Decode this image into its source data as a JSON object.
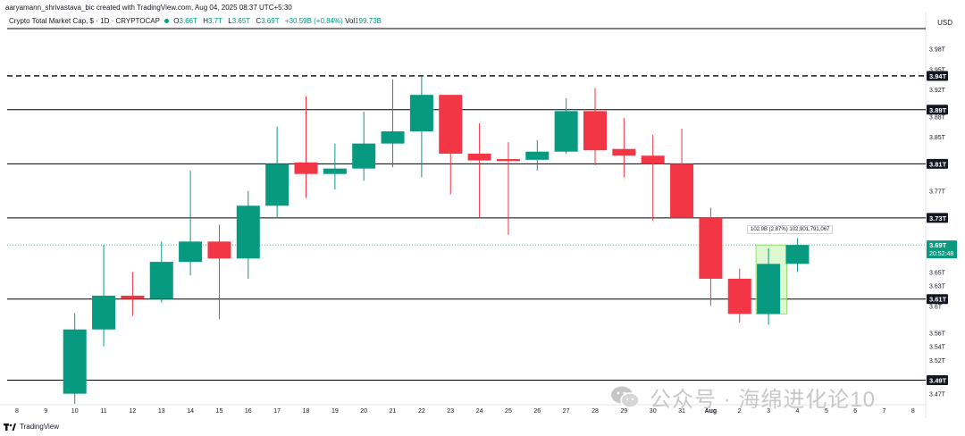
{
  "header": {
    "author_line": "aaryamann_shrivastava_bic created with TradingView.com, Aug 04, 2025 08:37 UTC+5:30",
    "symbol": "Crypto Total Market Cap, $ · 1D · CRYPTOCAP",
    "ohlc": [
      {
        "k": "O",
        "v": "3.66T"
      },
      {
        "k": "H",
        "v": "3.7T"
      },
      {
        "k": "L",
        "v": "3.65T"
      },
      {
        "k": "C",
        "v": "3.69T"
      }
    ],
    "change": "+30.59B (+0.84%)",
    "vol_label": "Vol",
    "vol_value": "199.73B"
  },
  "currency": "USD",
  "footer_brand": "TradingView",
  "watermark": "公众号 · 海绵进化论10",
  "measure_label": "102.9B (2.87%) 102,901,791,067",
  "colors": {
    "up": "#089981",
    "down": "#f23645",
    "grid": "#000000",
    "current": "#089981",
    "measure": "#c8f5b4"
  },
  "chart_data": {
    "type": "candlestick",
    "ylim": [
      3.455,
      4.01
    ],
    "x_ticks": [
      "8",
      "9",
      "10",
      "11",
      "12",
      "13",
      "14",
      "15",
      "16",
      "17",
      "18",
      "19",
      "20",
      "21",
      "22",
      "23",
      "24",
      "25",
      "26",
      "27",
      "28",
      "29",
      "30",
      "31",
      "Aug",
      "2",
      "3",
      "4",
      "5",
      "6",
      "7",
      "8"
    ],
    "y_ticks": [
      {
        "value": 3.98,
        "label": "3.98T"
      },
      {
        "value": 3.95,
        "label": "3.95T"
      },
      {
        "value": 3.92,
        "label": "3.92T"
      },
      {
        "value": 3.88,
        "label": "3.88T"
      },
      {
        "value": 3.85,
        "label": "3.85T"
      },
      {
        "value": 3.77,
        "label": "3.77T"
      },
      {
        "value": 3.73,
        "label": "3.73T"
      },
      {
        "value": 3.65,
        "label": "3.65T"
      },
      {
        "value": 3.63,
        "label": "3.63T"
      },
      {
        "value": 3.6,
        "label": "3.6T"
      },
      {
        "value": 3.56,
        "label": "3.56T"
      },
      {
        "value": 3.54,
        "label": "3.54T"
      },
      {
        "value": 3.52,
        "label": "3.52T"
      },
      {
        "value": 3.47,
        "label": "3.47T"
      }
    ],
    "levels": [
      {
        "value": 3.94,
        "label": "3.94T",
        "style": "dashed"
      },
      {
        "value": 3.89,
        "label": "3.89T",
        "style": "solid"
      },
      {
        "value": 3.81,
        "label": "3.81T",
        "style": "solid"
      },
      {
        "value": 3.73,
        "label": "3.73T",
        "style": "solid"
      },
      {
        "value": 3.61,
        "label": "3.61T",
        "style": "solid"
      },
      {
        "value": 3.49,
        "label": "3.49T",
        "style": "solid"
      }
    ],
    "current": {
      "value": 3.69,
      "label": "3.69T",
      "countdown": "20:52:48"
    },
    "candles": [
      {
        "date": "10",
        "o": 3.47,
        "h": 3.589,
        "l": 3.455,
        "c": 3.565
      },
      {
        "date": "11",
        "o": 3.565,
        "h": 3.69,
        "l": 3.54,
        "c": 3.615
      },
      {
        "date": "12",
        "o": 3.615,
        "h": 3.65,
        "l": 3.585,
        "c": 3.61
      },
      {
        "date": "13",
        "o": 3.61,
        "h": 3.695,
        "l": 3.605,
        "c": 3.665
      },
      {
        "date": "14",
        "o": 3.665,
        "h": 3.8,
        "l": 3.645,
        "c": 3.695
      },
      {
        "date": "15",
        "o": 3.695,
        "h": 3.72,
        "l": 3.58,
        "c": 3.67
      },
      {
        "date": "16",
        "o": 3.67,
        "h": 3.77,
        "l": 3.64,
        "c": 3.748
      },
      {
        "date": "17",
        "o": 3.748,
        "h": 3.865,
        "l": 3.73,
        "c": 3.81
      },
      {
        "date": "18",
        "o": 3.812,
        "h": 3.91,
        "l": 3.76,
        "c": 3.795
      },
      {
        "date": "19",
        "o": 3.795,
        "h": 3.84,
        "l": 3.772,
        "c": 3.803
      },
      {
        "date": "20",
        "o": 3.803,
        "h": 3.887,
        "l": 3.785,
        "c": 3.84
      },
      {
        "date": "21",
        "o": 3.84,
        "h": 3.935,
        "l": 3.805,
        "c": 3.858
      },
      {
        "date": "22",
        "o": 3.858,
        "h": 3.94,
        "l": 3.79,
        "c": 3.912
      },
      {
        "date": "23",
        "o": 3.912,
        "h": 3.912,
        "l": 3.765,
        "c": 3.825
      },
      {
        "date": "24",
        "o": 3.825,
        "h": 3.87,
        "l": 3.73,
        "c": 3.815
      },
      {
        "date": "25",
        "o": 3.817,
        "h": 3.842,
        "l": 3.705,
        "c": 3.814
      },
      {
        "date": "26",
        "o": 3.816,
        "h": 3.845,
        "l": 3.8,
        "c": 3.828
      },
      {
        "date": "27",
        "o": 3.828,
        "h": 3.907,
        "l": 3.825,
        "c": 3.888
      },
      {
        "date": "28",
        "o": 3.888,
        "h": 3.922,
        "l": 3.808,
        "c": 3.83
      },
      {
        "date": "29",
        "o": 3.832,
        "h": 3.878,
        "l": 3.79,
        "c": 3.822
      },
      {
        "date": "30",
        "o": 3.822,
        "h": 3.853,
        "l": 3.726,
        "c": 3.81
      },
      {
        "date": "31",
        "o": 3.81,
        "h": 3.862,
        "l": 3.73,
        "c": 3.73
      },
      {
        "date": "Aug",
        "o": 3.73,
        "h": 3.745,
        "l": 3.6,
        "c": 3.64
      },
      {
        "date": "2",
        "o": 3.64,
        "h": 3.655,
        "l": 3.575,
        "c": 3.588
      },
      {
        "date": "3",
        "o": 3.588,
        "h": 3.685,
        "l": 3.572,
        "c": 3.662
      },
      {
        "date": "4",
        "o": 3.662,
        "h": 3.7,
        "l": 3.65,
        "c": 3.69
      }
    ],
    "measure": {
      "from": "3",
      "to": "4",
      "low": 3.588,
      "high": 3.69
    }
  }
}
